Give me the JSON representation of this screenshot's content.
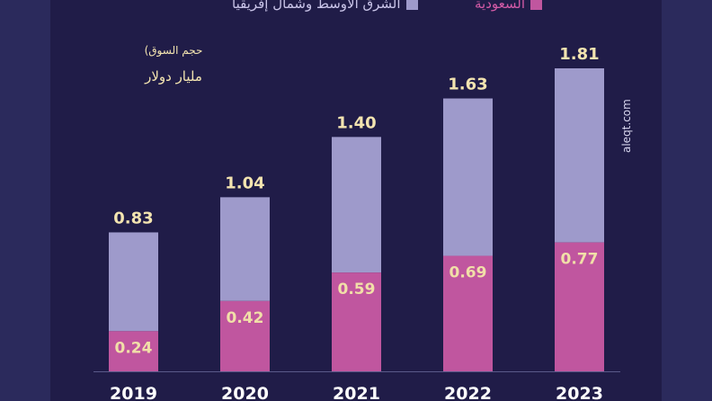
{
  "chart_data": {
    "type": "bar",
    "stacked": true,
    "categories": [
      "2019",
      "2020",
      "2021",
      "2022",
      "2023"
    ],
    "series": [
      {
        "name": "السعودية",
        "color": "#c0569f",
        "values": [
          0.24,
          0.42,
          0.59,
          0.69,
          0.77
        ]
      },
      {
        "name": "الشرق الأوسط وشمال إفريقيا",
        "color": "#9e9acb",
        "values": [
          0.59,
          0.62,
          0.81,
          0.94,
          1.04
        ]
      }
    ],
    "totals": [
      0.83,
      1.04,
      1.4,
      1.63,
      1.81
    ],
    "series_labels": [
      [
        "0.24",
        "0.42",
        "0.59",
        "0.69",
        "0.77"
      ]
    ],
    "total_labels": [
      "0.83",
      "1.04",
      "1.40",
      "1.63",
      "1.81"
    ],
    "ylim": [
      0,
      1.81
    ],
    "grid": false,
    "legend": "top"
  },
  "annotation": {
    "title": "(حجم السوق",
    "unit": "مليار دولار"
  },
  "source": "aleqt.com",
  "colors": {
    "background": "#2b2a5c",
    "panel": "#201c48",
    "total_label": "#f3e4b0",
    "segment_label": "#f1dfa8",
    "year_label": "#ffffff"
  }
}
